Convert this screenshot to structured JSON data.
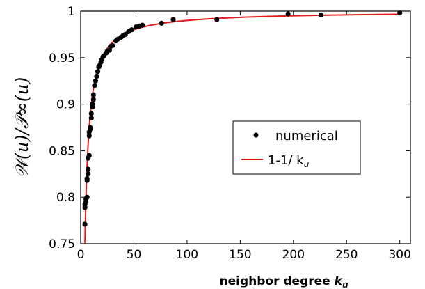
{
  "chart_data": {
    "type": "scatter",
    "xlabel": "neighbor degree",
    "xlabel_var": "k",
    "xlabel_sub": "u",
    "ylabel": "𝒲(u)/𝒫∞(u)",
    "xlim": [
      0,
      310
    ],
    "ylim": [
      0.75,
      1.0
    ],
    "xticks": [
      "0",
      "50",
      "100",
      "150",
      "200",
      "250",
      "300"
    ],
    "xtick_values": [
      0,
      50,
      100,
      150,
      200,
      250,
      300
    ],
    "yticks": [
      "0.75",
      "0.8",
      "0.85",
      "0.9",
      "0.95",
      "1"
    ],
    "ytick_values": [
      0.75,
      0.8,
      0.85,
      0.9,
      0.95,
      1.0
    ],
    "legend": {
      "position": "center-right",
      "entries": [
        {
          "label": "numerical",
          "kind": "marker",
          "color": "#000000"
        },
        {
          "label": "1-1/ k",
          "label_sub": "u",
          "kind": "line",
          "color": "#e31a1c"
        }
      ]
    },
    "series": [
      {
        "name": "numerical",
        "kind": "scatter",
        "color": "#000000",
        "points": [
          [
            4,
            0.771
          ],
          [
            4,
            0.789
          ],
          [
            4,
            0.792
          ],
          [
            5,
            0.795
          ],
          [
            5,
            0.798
          ],
          [
            6,
            0.8
          ],
          [
            6,
            0.818
          ],
          [
            6,
            0.82
          ],
          [
            7,
            0.825
          ],
          [
            7,
            0.83
          ],
          [
            7,
            0.842
          ],
          [
            8,
            0.845
          ],
          [
            8,
            0.866
          ],
          [
            8,
            0.87
          ],
          [
            9,
            0.873
          ],
          [
            9,
            0.875
          ],
          [
            10,
            0.885
          ],
          [
            10,
            0.89
          ],
          [
            11,
            0.897
          ],
          [
            11,
            0.9
          ],
          [
            12,
            0.905
          ],
          [
            12,
            0.91
          ],
          [
            13,
            0.92
          ],
          [
            14,
            0.925
          ],
          [
            15,
            0.93
          ],
          [
            16,
            0.935
          ],
          [
            17,
            0.94
          ],
          [
            18,
            0.942
          ],
          [
            19,
            0.945
          ],
          [
            20,
            0.948
          ],
          [
            21,
            0.951
          ],
          [
            22,
            0.952
          ],
          [
            24,
            0.955
          ],
          [
            25,
            0.957
          ],
          [
            27,
            0.958
          ],
          [
            28,
            0.962
          ],
          [
            30,
            0.963
          ],
          [
            33,
            0.968
          ],
          [
            35,
            0.97
          ],
          [
            38,
            0.972
          ],
          [
            40,
            0.974
          ],
          [
            42,
            0.975
          ],
          [
            45,
            0.978
          ],
          [
            48,
            0.98
          ],
          [
            52,
            0.983
          ],
          [
            55,
            0.984
          ],
          [
            58,
            0.985
          ],
          [
            76,
            0.987
          ],
          [
            87,
            0.991
          ],
          [
            128,
            0.991
          ],
          [
            195,
            0.997
          ],
          [
            226,
            0.996
          ],
          [
            300,
            0.998
          ]
        ]
      },
      {
        "name": "1-1/ k_u",
        "kind": "line",
        "color": "#e31a1c",
        "formula": "1-1/k",
        "x_range": [
          4,
          300
        ]
      }
    ]
  }
}
